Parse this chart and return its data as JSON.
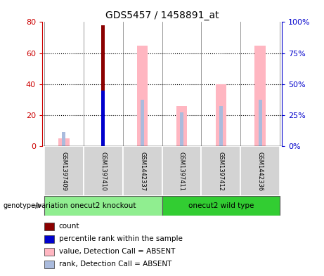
{
  "title": "GDS5457 / 1458891_at",
  "samples": [
    "GSM1397409",
    "GSM1397410",
    "GSM1442337",
    "GSM1397411",
    "GSM1397412",
    "GSM1442336"
  ],
  "ylim_left": [
    0,
    80
  ],
  "ylim_right": [
    0,
    100
  ],
  "yticks_left": [
    0,
    20,
    40,
    60,
    80
  ],
  "ytick_labels_left": [
    "0",
    "20",
    "40",
    "60",
    "80"
  ],
  "yticks_right": [
    0,
    25,
    50,
    75,
    100
  ],
  "ytick_labels_right": [
    "0%",
    "25%",
    "50%",
    "75%",
    "100%"
  ],
  "count_values": [
    0,
    78,
    0,
    0,
    0,
    0
  ],
  "count_color": "#8B0000",
  "rank_values": [
    0,
    36,
    0,
    0,
    0,
    0
  ],
  "rank_color": "#0000CD",
  "value_absent": [
    5,
    0,
    65,
    26,
    40,
    65
  ],
  "value_absent_color": "#FFB6C1",
  "rank_absent": [
    9,
    0,
    30,
    22,
    26,
    30
  ],
  "rank_absent_color": "#AABBDD",
  "group1_label": "onecut2 knockout",
  "group2_label": "onecut2 wild type",
  "group1_color": "#90EE90",
  "group2_color": "#32CD32",
  "xlabel_genotype": "genotype/variation",
  "left_axis_color": "#CC0000",
  "right_axis_color": "#0000CC",
  "legend_items": [
    {
      "color": "#8B0000",
      "label": "count"
    },
    {
      "color": "#0000CD",
      "label": "percentile rank within the sample"
    },
    {
      "color": "#FFB6C1",
      "label": "value, Detection Call = ABSENT"
    },
    {
      "color": "#AABBDD",
      "label": "rank, Detection Call = ABSENT"
    }
  ]
}
